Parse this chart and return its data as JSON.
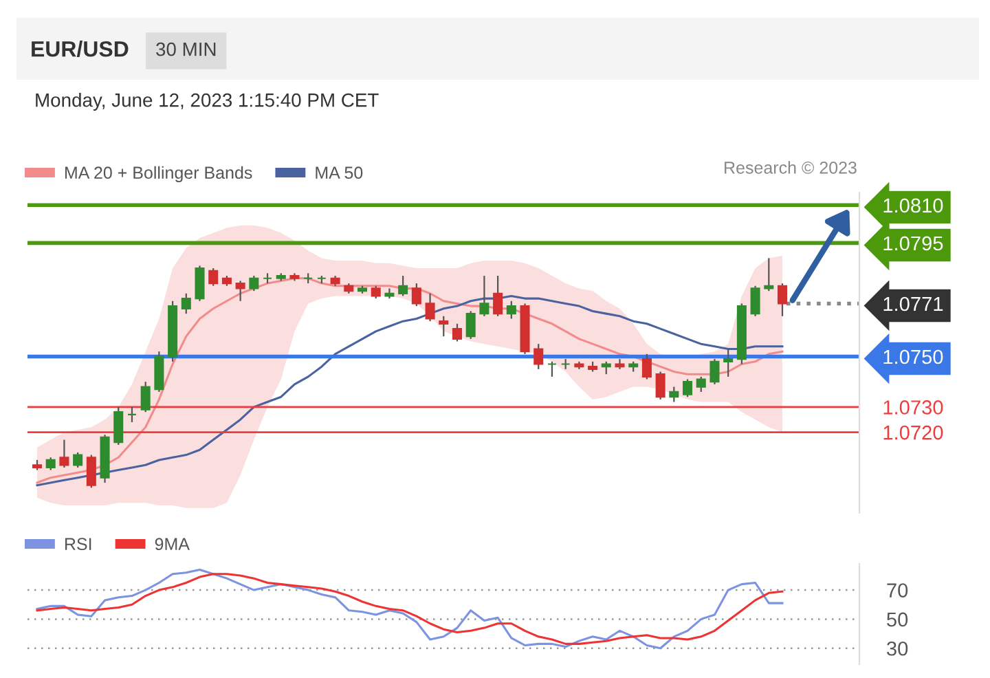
{
  "chart_data": [
    {
      "type": "candlestick",
      "title": "EUR/USD",
      "subtitle": "Monday, June 12, 2023 1:15:40 PM CET",
      "annotations": [
        "30 MIN",
        "Research © 2023"
      ],
      "categories": [
        null,
        null,
        null,
        null,
        null,
        null,
        null,
        null,
        null,
        null,
        null,
        null,
        null,
        null,
        null,
        null,
        null,
        null,
        null,
        null,
        null,
        null,
        null,
        null,
        null,
        null,
        null,
        null,
        null,
        null,
        null,
        null,
        null,
        null,
        null,
        null,
        null,
        null,
        null,
        null,
        null,
        null,
        null,
        null,
        null,
        null,
        null,
        null,
        null,
        null,
        null,
        null,
        null,
        null,
        null,
        null
      ],
      "ohlc": [
        [
          1.0707,
          1.0709,
          1.0705,
          1.0706
        ],
        [
          1.0706,
          1.071,
          1.0705,
          1.0709
        ],
        [
          1.071,
          1.0717,
          1.0706,
          1.0707
        ],
        [
          1.0707,
          1.0712,
          1.0706,
          1.0711
        ],
        [
          1.071,
          1.0711,
          1.0698,
          1.0699
        ],
        [
          1.0702,
          1.0719,
          1.07,
          1.0718
        ],
        [
          1.0716,
          1.073,
          1.0715,
          1.0728
        ],
        [
          1.0727,
          1.073,
          1.0724,
          1.0727
        ],
        [
          1.0729,
          1.074,
          1.0728,
          1.0738
        ],
        [
          1.0737,
          1.0752,
          1.0736,
          1.075
        ],
        [
          1.075,
          1.0772,
          1.0748,
          1.077
        ],
        [
          1.0769,
          1.0775,
          1.0767,
          1.0773
        ],
        [
          1.0773,
          1.0786,
          1.0772,
          1.0785
        ],
        [
          1.0784,
          1.0785,
          1.0778,
          1.0779
        ],
        [
          1.0781,
          1.0782,
          1.0778,
          1.0779
        ],
        [
          1.0779,
          1.078,
          1.0772,
          1.0777
        ],
        [
          1.0777,
          1.0782,
          1.0776,
          1.0781
        ],
        [
          1.0781,
          1.0783,
          1.0779,
          1.0781
        ],
        [
          1.0781,
          1.0783,
          1.078,
          1.0782
        ],
        [
          1.0782,
          1.0783,
          1.078,
          1.0781
        ],
        [
          1.0781,
          1.0783,
          1.0779,
          1.0781
        ],
        [
          1.0781,
          1.0782,
          1.0779,
          1.0781
        ],
        [
          1.0781,
          1.0782,
          1.0778,
          1.0779
        ],
        [
          1.0778,
          1.0779,
          1.0775,
          1.0776
        ],
        [
          1.0776,
          1.0778,
          1.0775,
          1.0777
        ],
        [
          1.0777,
          1.0778,
          1.0773,
          1.0774
        ],
        [
          1.0774,
          1.0777,
          1.0773,
          1.0775
        ],
        [
          1.0775,
          1.0782,
          1.0774,
          1.0778
        ],
        [
          1.0777,
          1.0779,
          1.077,
          1.0771
        ],
        [
          1.0771,
          1.0775,
          1.0764,
          1.0765
        ],
        [
          1.0764,
          1.0766,
          1.0758,
          1.0763
        ],
        [
          1.0761,
          1.0763,
          1.0756,
          1.0757
        ],
        [
          1.0758,
          1.0768,
          1.0757,
          1.0767
        ],
        [
          1.0767,
          1.0782,
          1.0766,
          1.0771
        ],
        [
          1.0775,
          1.0782,
          1.0766,
          1.0767
        ],
        [
          1.0767,
          1.0772,
          1.0765,
          1.077
        ],
        [
          1.077,
          1.0771,
          1.0751,
          1.0752
        ],
        [
          1.0753,
          1.0755,
          1.0745,
          1.0747
        ],
        [
          1.0747,
          1.0748,
          1.0742,
          1.0747
        ],
        [
          1.0747,
          1.0749,
          1.0745,
          1.0747
        ],
        [
          1.0747,
          1.0748,
          1.0745,
          1.0746
        ],
        [
          1.0746,
          1.0748,
          1.0744,
          1.0745
        ],
        [
          1.0746,
          1.0748,
          1.0743,
          1.0747
        ],
        [
          1.0747,
          1.0749,
          1.0745,
          1.0746
        ],
        [
          1.0746,
          1.0748,
          1.0744,
          1.0747
        ],
        [
          1.0749,
          1.0751,
          1.0741,
          1.0742
        ],
        [
          1.0743,
          1.0744,
          1.0733,
          1.0734
        ],
        [
          1.0734,
          1.0738,
          1.0732,
          1.0736
        ],
        [
          1.0735,
          1.0741,
          1.0734,
          1.074
        ],
        [
          1.0738,
          1.0742,
          1.0736,
          1.0741
        ],
        [
          1.074,
          1.0749,
          1.0739,
          1.0748
        ],
        [
          1.0748,
          1.0753,
          1.0742,
          1.0749
        ],
        [
          1.0749,
          1.0771,
          1.0747,
          1.077
        ],
        [
          1.0767,
          1.0778,
          1.0766,
          1.0777
        ],
        [
          1.0777,
          1.0789,
          1.0776,
          1.0778
        ],
        [
          1.0778,
          1.0779,
          1.0766,
          1.0771
        ]
      ],
      "series": [
        {
          "name": "MA 20 + Bollinger Bands",
          "type": "line",
          "color": "#f28b8b",
          "values": [
            1.07,
            1.0702,
            1.0703,
            1.0704,
            1.0705,
            1.0707,
            1.071,
            1.0716,
            1.0722,
            1.0733,
            1.0747,
            1.0758,
            1.0765,
            1.0769,
            1.0772,
            1.0775,
            1.0777,
            1.0779,
            1.078,
            1.0781,
            1.0781,
            1.0779,
            1.0778,
            1.0778,
            1.0778,
            1.0778,
            1.0778,
            1.0777,
            1.0777,
            1.0775,
            1.0772,
            1.0771,
            1.077,
            1.077,
            1.0769,
            1.0769,
            1.0767,
            1.0765,
            1.0763,
            1.076,
            1.0757,
            1.0755,
            1.0753,
            1.0751,
            1.075,
            1.0748,
            1.0746,
            1.0744,
            1.0743,
            1.0743,
            1.0743,
            1.0744,
            1.0747,
            1.0748,
            1.0751,
            1.0752
          ],
          "upper": [
            1.0714,
            1.0717,
            1.072,
            1.0721,
            1.0722,
            1.0725,
            1.073,
            1.0739,
            1.0752,
            1.0765,
            1.0785,
            1.0793,
            1.0797,
            1.0799,
            1.0801,
            1.0802,
            1.0802,
            1.0801,
            1.0799,
            1.0796,
            1.0792,
            1.0789,
            1.0788,
            1.0788,
            1.0788,
            1.0787,
            1.0787,
            1.0786,
            1.0785,
            1.0785,
            1.0785,
            1.0785,
            1.0787,
            1.0788,
            1.0788,
            1.0788,
            1.0787,
            1.0785,
            1.0782,
            1.0779,
            1.0777,
            1.0776,
            1.0772,
            1.0769,
            1.0763,
            1.0755,
            1.0751,
            1.075,
            1.075,
            1.0751,
            1.0752,
            1.0755,
            1.0774,
            1.0785,
            1.0789,
            1.079
          ],
          "lower": [
            1.0694,
            1.0692,
            1.0691,
            1.0691,
            1.0691,
            1.0691,
            1.0692,
            1.0692,
            1.0692,
            1.0691,
            1.0691,
            1.069,
            1.069,
            1.069,
            1.0692,
            1.0703,
            1.0717,
            1.073,
            1.0741,
            1.076,
            1.0771,
            1.0773,
            1.0774,
            1.0774,
            1.0774,
            1.0774,
            1.0774,
            1.0773,
            1.0771,
            1.0766,
            1.076,
            1.0758,
            1.0756,
            1.0755,
            1.0754,
            1.0753,
            1.0752,
            1.0751,
            1.0748,
            1.0744,
            1.0738,
            1.0733,
            1.0734,
            1.0736,
            1.0738,
            1.0738,
            1.0737,
            1.0735,
            1.0733,
            1.0732,
            1.0732,
            1.0732,
            1.0728,
            1.0725,
            1.0722,
            1.072
          ]
        },
        {
          "name": "MA 50",
          "type": "line",
          "color": "#4a63a0",
          "values": [
            1.0699,
            1.07,
            1.0701,
            1.0702,
            1.0703,
            1.0704,
            1.0705,
            1.0706,
            1.0707,
            1.0709,
            1.071,
            1.0711,
            1.0713,
            1.0717,
            1.0721,
            1.0725,
            1.073,
            1.0732,
            1.0734,
            1.0739,
            1.0742,
            1.0746,
            1.0751,
            1.0754,
            1.0757,
            1.076,
            1.0762,
            1.0764,
            1.0765,
            1.0767,
            1.0769,
            1.077,
            1.0772,
            1.0773,
            1.0773,
            1.0774,
            1.0773,
            1.0773,
            1.0772,
            1.0771,
            1.077,
            1.0768,
            1.0767,
            1.0766,
            1.0764,
            1.0763,
            1.0761,
            1.0759,
            1.0757,
            1.0755,
            1.0754,
            1.0753,
            1.0753,
            1.0754,
            1.0754,
            1.0754
          ]
        }
      ],
      "ylim": [
        1.0688,
        1.0815
      ],
      "yticks": [
        {
          "value": 1.081,
          "label": "1.0810"
        },
        1.0795,
        1.0771,
        {
          "value": 1.075,
          "label": "1.0750"
        },
        {
          "value": 1.073,
          "label": "1.0730"
        },
        {
          "value": 1.072,
          "label": "1.0720"
        }
      ],
      "ref_lines": [
        {
          "axis": "y",
          "value": 1.081,
          "color": "#4c9a0c",
          "line_style": "solid"
        },
        {
          "axis": "y",
          "value": 1.0795,
          "color": "#4c9a0c",
          "line_style": "solid"
        },
        {
          "axis": "y",
          "value": 1.075,
          "color": "#3b78e7",
          "line_style": "solid"
        },
        {
          "axis": "y",
          "value": 1.073,
          "color": "#ee3b3b",
          "line_style": "solid"
        },
        {
          "axis": "y",
          "value": 1.072,
          "color": "#ee3b3b",
          "line_style": "solid"
        }
      ],
      "legend": "top left",
      "tick_labels": "y"
    },
    {
      "type": "line",
      "categories": [
        null,
        null,
        null,
        null,
        null,
        null,
        null,
        null,
        null,
        null,
        null,
        null,
        null,
        null,
        null,
        null,
        null,
        null,
        null,
        null,
        null,
        null,
        null,
        null,
        null,
        null,
        null,
        null,
        null,
        null,
        null,
        null,
        null,
        null,
        null,
        null,
        null,
        null,
        null,
        null,
        null,
        null,
        null,
        null,
        null,
        null,
        null,
        null,
        null,
        null,
        null,
        null,
        null,
        null,
        null,
        null
      ],
      "series": [
        {
          "name": "RSI",
          "color": "#7b93e0",
          "values": [
            57,
            59,
            59,
            53,
            52,
            63,
            65,
            66,
            70,
            75,
            81,
            82,
            84,
            81,
            78,
            74,
            70,
            72,
            74,
            72,
            70,
            67,
            65,
            56,
            55,
            53,
            56,
            54,
            48,
            36,
            38,
            44,
            56,
            49,
            51,
            37,
            32,
            33,
            33,
            31,
            35,
            38,
            36,
            42,
            38,
            32,
            30,
            38,
            42,
            50,
            53,
            70,
            74,
            75,
            61,
            61
          ]
        },
        {
          "name": "9MA",
          "color": "#ee3333",
          "values": [
            56,
            57,
            58,
            57,
            56,
            57,
            58,
            60,
            66,
            70,
            72,
            75,
            79,
            81,
            81,
            80,
            78,
            75,
            74,
            73,
            72,
            71,
            69,
            66,
            62,
            59,
            57,
            56,
            52,
            47,
            43,
            41,
            42,
            44,
            47,
            47,
            42,
            38,
            36,
            33,
            33,
            34,
            35,
            37,
            38,
            39,
            37,
            37,
            36,
            38,
            42,
            49,
            56,
            63,
            68,
            69
          ]
        }
      ],
      "ylim": [
        19,
        88
      ],
      "yticks": [
        30,
        50,
        70
      ],
      "grid": "y",
      "legend": "top left",
      "tick_labels": "y"
    }
  ]
}
